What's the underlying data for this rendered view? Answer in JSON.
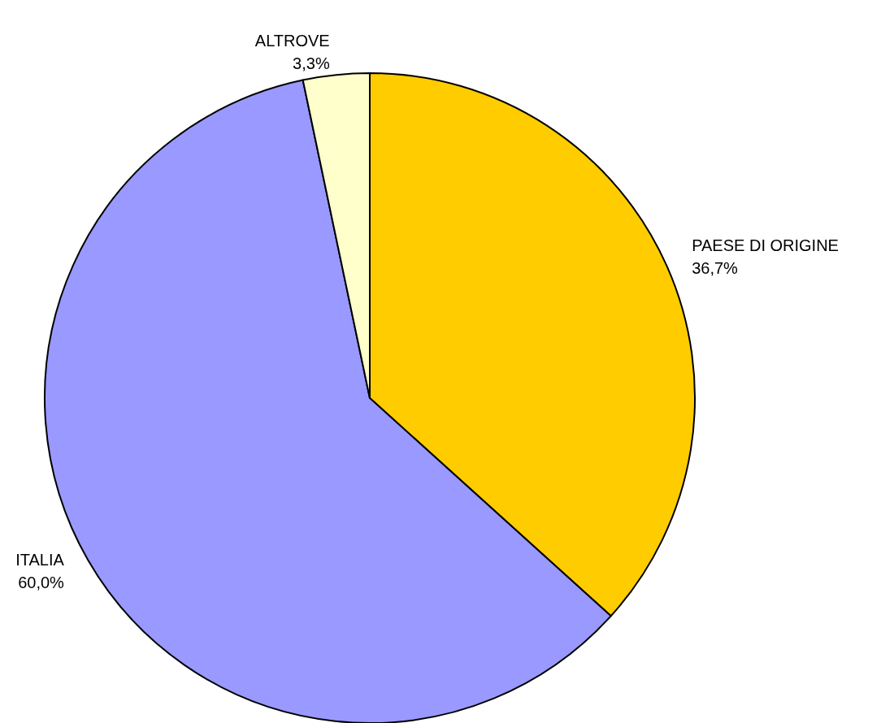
{
  "chart_data": {
    "type": "pie",
    "categories": [
      "PAESE DI ORIGINE",
      "ITALIA",
      "ALTROVE"
    ],
    "values": [
      36.7,
      60.0,
      3.3
    ],
    "colors": [
      "#ffcc00",
      "#9999ff",
      "#ffffcc"
    ],
    "value_labels": [
      "36,7%",
      "60,0%",
      "3,3%"
    ],
    "legend": false
  }
}
